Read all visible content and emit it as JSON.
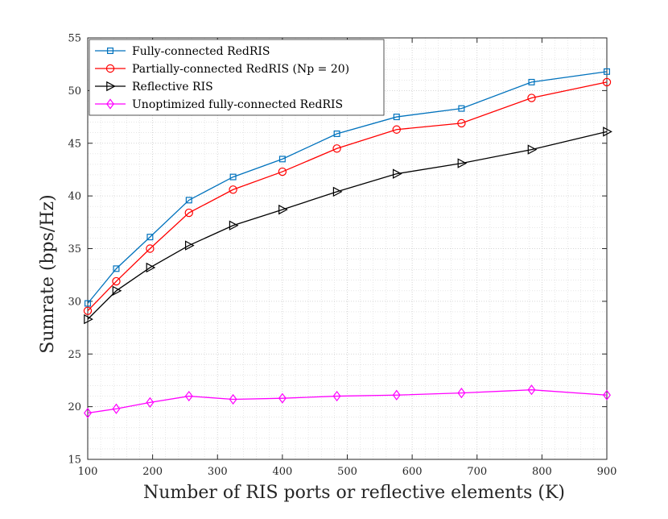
{
  "chart_data": {
    "type": "line",
    "title": "",
    "xlabel": "Number of RIS ports or reflective elements (K)",
    "ylabel": "Sumrate (bps/Hz)",
    "xlim": [
      100,
      900
    ],
    "ylim": [
      15,
      55
    ],
    "xticks": [
      100,
      200,
      300,
      400,
      500,
      600,
      700,
      800,
      900
    ],
    "yticks": [
      15,
      20,
      25,
      30,
      35,
      40,
      45,
      50,
      55
    ],
    "grid": true,
    "legend_position": "top-left",
    "x": [
      100,
      144,
      196,
      256,
      324,
      400,
      484,
      576,
      676,
      784,
      900
    ],
    "series": [
      {
        "name": "Fully-connected RedRIS",
        "color": "#0072BD",
        "marker": "square",
        "values": [
          29.8,
          33.1,
          36.1,
          39.6,
          41.8,
          43.5,
          45.9,
          47.5,
          48.3,
          50.8,
          51.8
        ]
      },
      {
        "name": "Partially-connected RedRIS (Np = 20)",
        "color": "#FF0000",
        "marker": "circle",
        "values": [
          29.1,
          31.9,
          35.0,
          38.4,
          40.6,
          42.3,
          44.5,
          46.3,
          46.9,
          49.3,
          50.8
        ]
      },
      {
        "name": "Reflective RIS",
        "color": "#000000",
        "marker": "triangle-right",
        "values": [
          28.3,
          31.0,
          33.2,
          35.3,
          37.2,
          38.7,
          40.4,
          42.1,
          43.1,
          44.4,
          46.1
        ]
      },
      {
        "name": "Unoptimized fully-connected RedRIS",
        "color": "#FF00FF",
        "marker": "diamond",
        "values": [
          19.4,
          19.8,
          20.4,
          21.0,
          20.7,
          20.8,
          21.0,
          21.1,
          21.3,
          21.6,
          21.1
        ]
      }
    ]
  }
}
